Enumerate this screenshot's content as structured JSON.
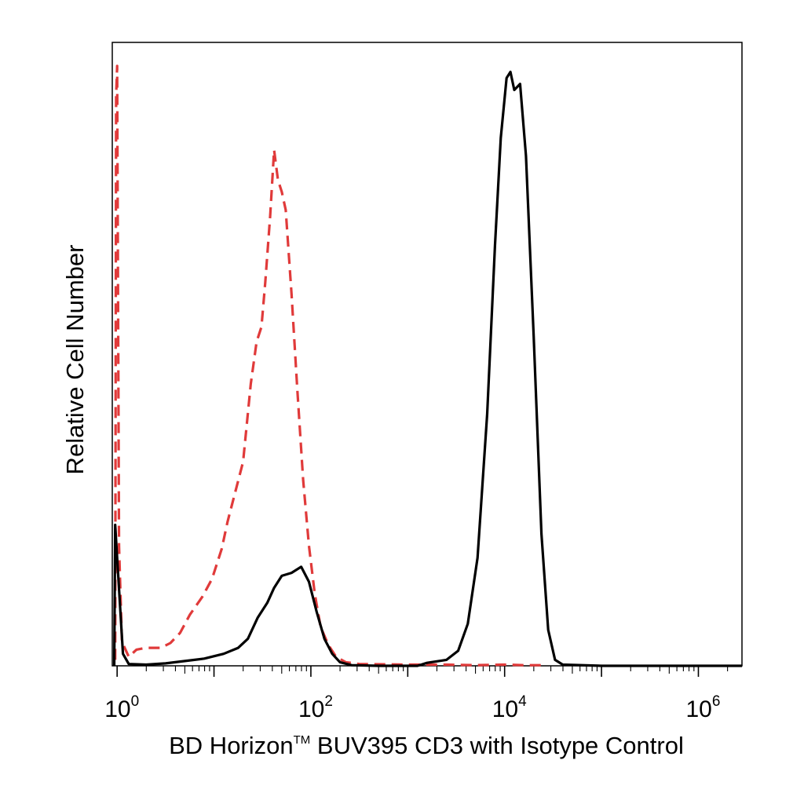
{
  "chart_data": {
    "type": "line",
    "title": "",
    "xlabel_parts": {
      "pre": "BD Horizon",
      "sup": "TM",
      "post": " BUV395 CD3 with Isotype Control"
    },
    "ylabel": "Relative Cell Number",
    "x_scale": "log10",
    "x_range_exponent": [
      -0.05,
      6.45
    ],
    "y_range": [
      0,
      100
    ],
    "grid": false,
    "legend": "none",
    "x_tick_labels": [
      {
        "base": "10",
        "exp": "0",
        "value_exp": 0
      },
      {
        "base": "10",
        "exp": "2",
        "value_exp": 2
      },
      {
        "base": "10",
        "exp": "4",
        "value_exp": 4
      },
      {
        "base": "10",
        "exp": "6",
        "value_exp": 6
      }
    ],
    "series": [
      {
        "style": "dashed",
        "color": "#e03a3a",
        "points": [
          [
            -0.02,
            1
          ],
          [
            -0.01,
            95
          ],
          [
            0.0,
            100
          ],
          [
            0.01,
            60
          ],
          [
            0.02,
            20
          ],
          [
            0.05,
            4
          ],
          [
            0.12,
            1.5
          ],
          [
            0.2,
            2.7
          ],
          [
            0.3,
            3.0
          ],
          [
            0.45,
            3.0
          ],
          [
            0.55,
            3.8
          ],
          [
            0.65,
            5.5
          ],
          [
            0.75,
            8.5
          ],
          [
            0.88,
            11.5
          ],
          [
            0.98,
            14.5
          ],
          [
            1.08,
            19.5
          ],
          [
            1.14,
            24.0
          ],
          [
            1.22,
            29.0
          ],
          [
            1.3,
            34.0
          ],
          [
            1.38,
            47.0
          ],
          [
            1.44,
            54.0
          ],
          [
            1.49,
            56.5
          ],
          [
            1.53,
            64.0
          ],
          [
            1.58,
            75.0
          ],
          [
            1.62,
            86.0
          ],
          [
            1.66,
            81.0
          ],
          [
            1.7,
            79.0
          ],
          [
            1.74,
            76.0
          ],
          [
            1.8,
            62.0
          ],
          [
            1.86,
            46.0
          ],
          [
            1.92,
            31.0
          ],
          [
            1.98,
            20.0
          ],
          [
            2.04,
            12.0
          ],
          [
            2.1,
            6.5
          ],
          [
            2.18,
            3.5
          ],
          [
            2.26,
            1.5
          ],
          [
            2.36,
            0.6
          ],
          [
            2.5,
            0.3
          ],
          [
            3.0,
            0.2
          ],
          [
            3.4,
            0.2
          ],
          [
            3.7,
            0.1
          ],
          [
            4.0,
            0.2
          ],
          [
            4.2,
            0.1
          ],
          [
            4.4,
            0.1
          ]
        ]
      },
      {
        "style": "solid",
        "color": "#000000",
        "points": [
          [
            -0.03,
            0
          ],
          [
            -0.02,
            23.5
          ],
          [
            0.0,
            18.0
          ],
          [
            0.03,
            10.0
          ],
          [
            0.06,
            2.0
          ],
          [
            0.12,
            0.3
          ],
          [
            0.3,
            0.2
          ],
          [
            0.5,
            0.4
          ],
          [
            0.7,
            0.8
          ],
          [
            0.9,
            1.2
          ],
          [
            1.1,
            2.0
          ],
          [
            1.25,
            3.0
          ],
          [
            1.35,
            4.5
          ],
          [
            1.45,
            8.0
          ],
          [
            1.55,
            10.5
          ],
          [
            1.62,
            13.0
          ],
          [
            1.7,
            15.0
          ],
          [
            1.8,
            15.5
          ],
          [
            1.9,
            16.5
          ],
          [
            1.98,
            14.0
          ],
          [
            2.06,
            9.0
          ],
          [
            2.14,
            4.5
          ],
          [
            2.22,
            2.0
          ],
          [
            2.3,
            0.6
          ],
          [
            2.42,
            0.1
          ],
          [
            2.7,
            0.0
          ],
          [
            3.1,
            0.0
          ],
          [
            3.2,
            0.5
          ],
          [
            3.4,
            1.0
          ],
          [
            3.52,
            2.5
          ],
          [
            3.62,
            7.0
          ],
          [
            3.72,
            18.0
          ],
          [
            3.82,
            42.0
          ],
          [
            3.9,
            70.0
          ],
          [
            3.96,
            88.0
          ],
          [
            4.02,
            98.0
          ],
          [
            4.06,
            99.0
          ],
          [
            4.1,
            96.0
          ],
          [
            4.16,
            97.0
          ],
          [
            4.22,
            85.0
          ],
          [
            4.3,
            55.0
          ],
          [
            4.38,
            22.0
          ],
          [
            4.45,
            6.0
          ],
          [
            4.52,
            1.0
          ],
          [
            4.6,
            0.2
          ],
          [
            5.0,
            0.0
          ],
          [
            6.45,
            0.0
          ]
        ]
      }
    ]
  }
}
